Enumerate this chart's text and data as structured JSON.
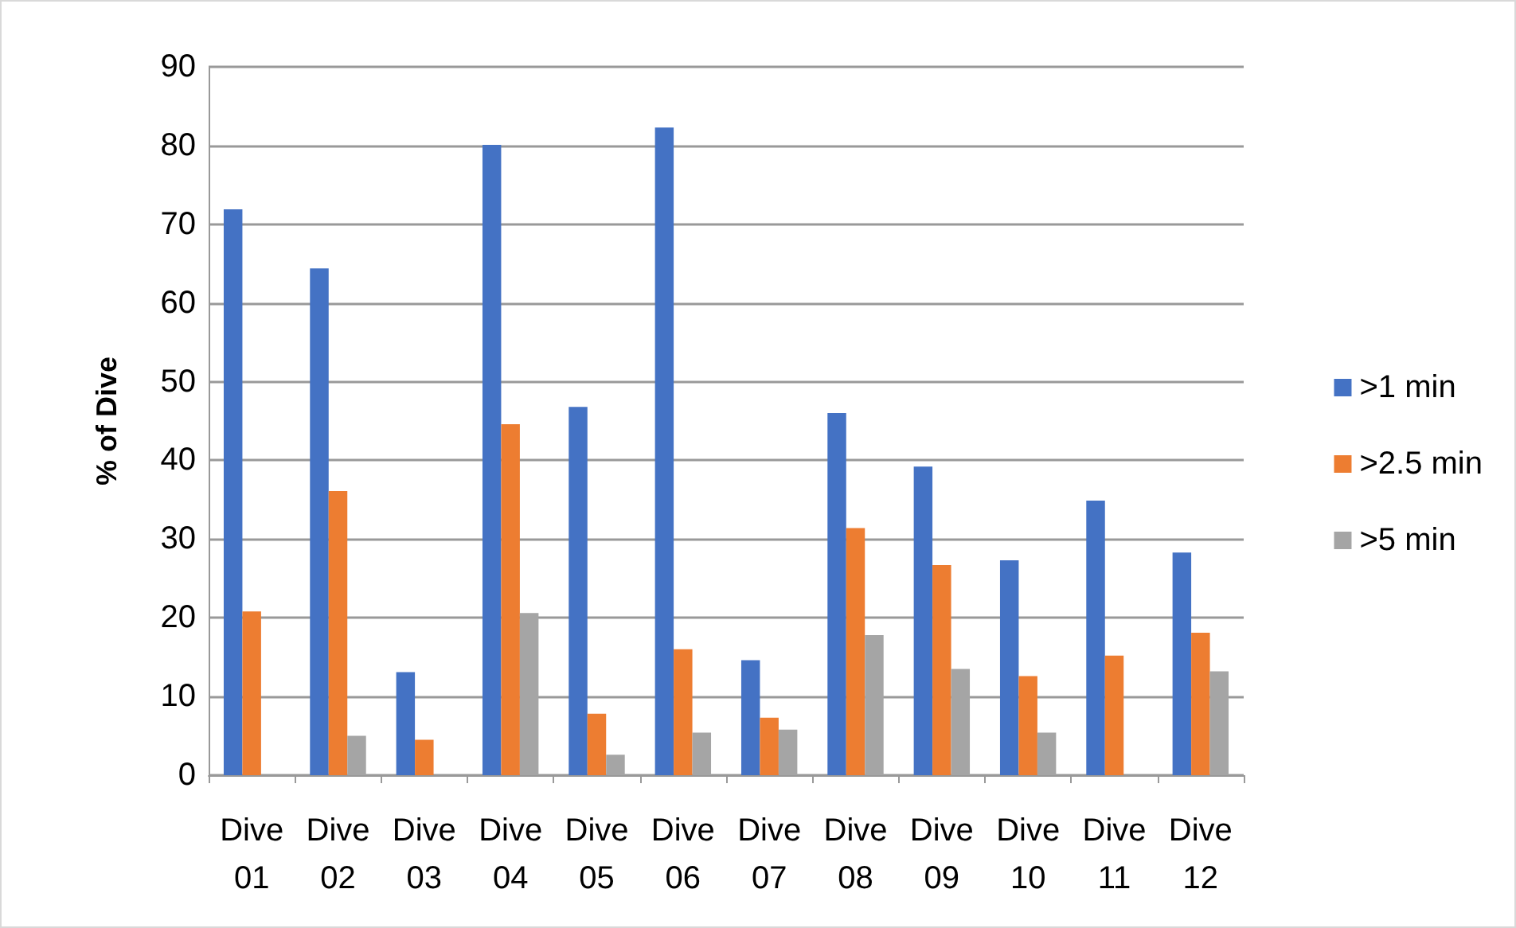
{
  "chart_data": {
    "type": "bar",
    "ylabel": "% of Dive",
    "categories": [
      "Dive 01",
      "Dive 02",
      "Dive 03",
      "Dive 04",
      "Dive 05",
      "Dive 06",
      "Dive 07",
      "Dive 08",
      "Dive 09",
      "Dive 10",
      "Dive 11",
      "Dive 12"
    ],
    "series": [
      {
        "name": ">1 min",
        "color": "#4472c4",
        "values": [
          71.9,
          64.4,
          13.1,
          80.1,
          46.8,
          82.3,
          14.6,
          46.0,
          39.2,
          27.3,
          34.9,
          28.3
        ]
      },
      {
        "name": ">2.5 min",
        "color": "#ed7d31",
        "values": [
          20.8,
          36.1,
          4.5,
          44.6,
          7.8,
          16.0,
          7.3,
          31.4,
          26.7,
          12.6,
          15.2,
          18.1
        ]
      },
      {
        "name": ">5 min",
        "color": "#a5a5a5",
        "values": [
          0,
          5.0,
          0,
          20.6,
          2.6,
          5.4,
          5.8,
          17.8,
          13.5,
          5.4,
          0,
          13.2
        ]
      }
    ],
    "ylim": [
      0,
      90
    ],
    "yticks": [
      0,
      10,
      20,
      30,
      40,
      50,
      60,
      70,
      80,
      90
    ],
    "grid": "y",
    "legend": "right"
  }
}
